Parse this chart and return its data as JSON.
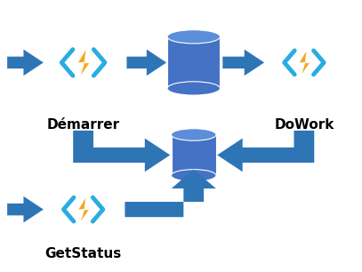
{
  "bg_color": "#ffffff",
  "arrow_color": "#2E75B6",
  "bolt_gold": "#F5A623",
  "bolt_cyan": "#2AACE2",
  "db_color": "#4472C4",
  "db_color_top": "#5B8DD9",
  "labels": {
    "demarrer": "Démarrer",
    "dowork": "DoWork",
    "getstatus": "GetStatus"
  },
  "label_fontsize": 11,
  "label_color": "#000000",
  "label_fontweight_demarrer": "bold",
  "label_fontweight_dowork": "bold",
  "label_fontweight_getstatus": "bold"
}
